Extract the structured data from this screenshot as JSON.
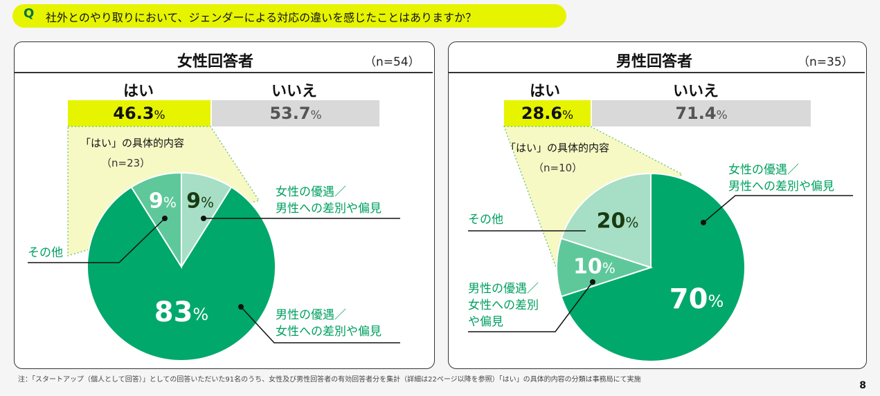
{
  "question": {
    "mark": "Q",
    "text": "社外とのやり取りにおいて、ジェンダーによる対応の違いを感じたことはありますか？"
  },
  "chart_data": [
    {
      "type": "pie",
      "panel": "女性回答者",
      "n": "（n=54）",
      "yes_label": "はい",
      "no_label": "いいえ",
      "yes_pct": 46.3,
      "no_pct": 53.7,
      "pct_unit": "%",
      "breakdown_title": "「はい」の具体的内容",
      "breakdown_n": "（n=23）",
      "slices": [
        {
          "label": "女性の優遇／男性への差別や偏見",
          "value": 9,
          "color": "#a6dfc5"
        },
        {
          "label": "男性の優遇／女性への差別や偏見",
          "value": 83,
          "color": "#00a86b"
        },
        {
          "label": "その他",
          "value": 9,
          "color": "#5ec89a"
        }
      ]
    },
    {
      "type": "pie",
      "panel": "男性回答者",
      "n": "（n=35）",
      "yes_label": "はい",
      "no_label": "いいえ",
      "yes_pct": 28.6,
      "no_pct": 71.4,
      "pct_unit": "%",
      "breakdown_title": "「はい」の具体的内容",
      "breakdown_n": "（n=10）",
      "slices": [
        {
          "label": "女性の優遇／男性への差別や偏見",
          "value": 70,
          "color": "#00a86b"
        },
        {
          "label": "男性の優遇／女性への差別や偏見",
          "value": 10,
          "color": "#5ec89a"
        },
        {
          "label": "その他",
          "value": 20,
          "color": "#a6dfc5"
        }
      ]
    }
  ],
  "labels": {
    "f_slice_a": [
      "女性の優遇／",
      "男性への差別や偏見"
    ],
    "f_slice_b": [
      "男性の優遇／",
      "女性への差別や偏見"
    ],
    "f_slice_c": [
      "その他"
    ],
    "m_slice_a": [
      "女性の優遇／",
      "男性への差別や偏見"
    ],
    "m_slice_b": [
      "男性の優遇／",
      "女性への差別",
      "や偏見"
    ],
    "m_slice_c": [
      "その他"
    ]
  },
  "footnote": "注：「スタートアップ（個人として回答）」としての回答いただいた91名のうち、女性及び男性回答者の有効回答者分を集計（詳細は22ページ以降を参照）「はい」の具体的内容の分類は事務局にて実施",
  "page_number": "8"
}
